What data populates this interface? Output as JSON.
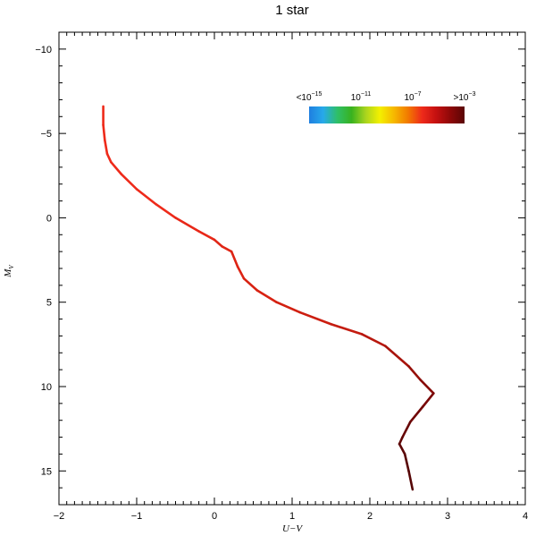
{
  "chart_data": {
    "type": "line",
    "title": "1 star",
    "xlabel": "U−V",
    "ylabel": "M",
    "ylabel_subscript": "V",
    "xlim": [
      -2,
      4
    ],
    "ylim": [
      17,
      -11
    ],
    "y_inverted": true,
    "x_ticks": [
      {
        "value": -2,
        "label": "−2"
      },
      {
        "value": -1,
        "label": "−1"
      },
      {
        "value": 0,
        "label": "0"
      },
      {
        "value": 1,
        "label": "1"
      },
      {
        "value": 2,
        "label": "2"
      },
      {
        "value": 3,
        "label": "3"
      },
      {
        "value": 4,
        "label": "4"
      }
    ],
    "y_ticks": [
      {
        "value": -10,
        "label": "−10"
      },
      {
        "value": -5,
        "label": "−5"
      },
      {
        "value": 0,
        "label": "0"
      },
      {
        "value": 5,
        "label": "5"
      },
      {
        "value": 10,
        "label": "10"
      },
      {
        "value": 15,
        "label": "15"
      }
    ],
    "grid": false,
    "series": [
      {
        "points": [
          {
            "x": -1.43,
            "y": -6.6,
            "color": "#ee2a1a"
          },
          {
            "x": -1.43,
            "y": -5.5,
            "color": "#ee2a1a"
          },
          {
            "x": -1.41,
            "y": -4.6,
            "color": "#ee2a1a"
          },
          {
            "x": -1.38,
            "y": -3.8,
            "color": "#ee2a1a"
          },
          {
            "x": -1.33,
            "y": -3.3,
            "color": "#ee2a1a"
          },
          {
            "x": -1.2,
            "y": -2.6,
            "color": "#ee2a1a"
          },
          {
            "x": -1.0,
            "y": -1.7,
            "color": "#ee2a1a"
          },
          {
            "x": -0.75,
            "y": -0.8,
            "color": "#ee2a1a"
          },
          {
            "x": -0.5,
            "y": 0.0,
            "color": "#e82818"
          },
          {
            "x": -0.2,
            "y": 0.8,
            "color": "#e82818"
          },
          {
            "x": 0.0,
            "y": 1.3,
            "color": "#e02616"
          },
          {
            "x": 0.1,
            "y": 1.7,
            "color": "#e02616"
          },
          {
            "x": 0.22,
            "y": 2.0,
            "color": "#dd2414"
          },
          {
            "x": 0.3,
            "y": 2.9,
            "color": "#dd2414"
          },
          {
            "x": 0.38,
            "y": 3.6,
            "color": "#d82212"
          },
          {
            "x": 0.55,
            "y": 4.3,
            "color": "#d82212"
          },
          {
            "x": 0.8,
            "y": 5.0,
            "color": "#d22010"
          },
          {
            "x": 1.1,
            "y": 5.6,
            "color": "#cc1e10"
          },
          {
            "x": 1.5,
            "y": 6.3,
            "color": "#c41c10"
          },
          {
            "x": 1.9,
            "y": 6.9,
            "color": "#b8180e"
          },
          {
            "x": 2.2,
            "y": 7.6,
            "color": "#a8140c"
          },
          {
            "x": 2.5,
            "y": 8.8,
            "color": "#96100a"
          },
          {
            "x": 2.65,
            "y": 9.6,
            "color": "#880c0a"
          },
          {
            "x": 2.82,
            "y": 10.4,
            "color": "#7a0808"
          },
          {
            "x": 2.68,
            "y": 11.2,
            "color": "#700606"
          },
          {
            "x": 2.52,
            "y": 12.1,
            "color": "#680606"
          },
          {
            "x": 2.42,
            "y": 13.0,
            "color": "#600606"
          },
          {
            "x": 2.38,
            "y": 13.4,
            "color": "#5c0606"
          },
          {
            "x": 2.45,
            "y": 14.0,
            "color": "#580606"
          },
          {
            "x": 2.5,
            "y": 15.0,
            "color": "#560606"
          },
          {
            "x": 2.55,
            "y": 16.1,
            "color": "#540606"
          }
        ]
      }
    ],
    "colorbar": {
      "stops": [
        "#1f7fe0",
        "#27a9ea",
        "#2fbf68",
        "#38b21f",
        "#a9d41f",
        "#f4f000",
        "#f6b800",
        "#f27a00",
        "#ee2a1a",
        "#c41010",
        "#8e0808",
        "#5a0606"
      ],
      "labels": [
        {
          "base": "<10",
          "exp": "−15"
        },
        {
          "base": "10",
          "exp": "−11"
        },
        {
          "base": "10",
          "exp": "−7"
        },
        {
          "base": ">10",
          "exp": "−3"
        }
      ]
    }
  }
}
